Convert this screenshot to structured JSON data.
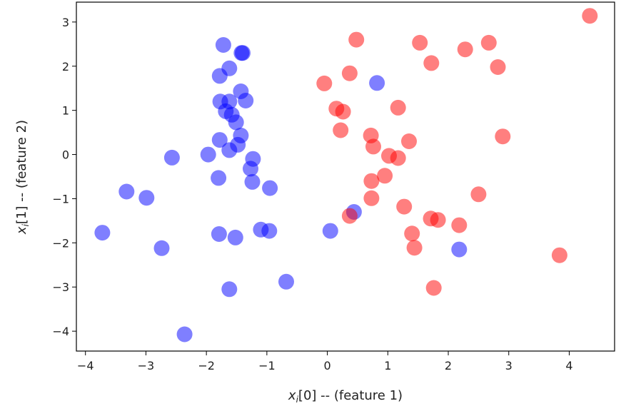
{
  "chart_data": {
    "type": "scatter",
    "xlabel": {
      "sym": "x",
      "sub": "i",
      "rest": "[0] -- (feature 1)"
    },
    "ylabel": {
      "sym": "x",
      "sub": "i",
      "rest": "[1] -- (feature 2)"
    },
    "xlim": [
      -4.15,
      4.75
    ],
    "ylim": [
      -4.45,
      3.45
    ],
    "xticks": [
      -4,
      -3,
      -2,
      -1,
      0,
      1,
      2,
      3,
      4
    ],
    "yticks": [
      3,
      2,
      1,
      0,
      -1,
      -2,
      -3,
      -4
    ],
    "xtick_labels": [
      "−4",
      "−3",
      "−2",
      "−1",
      "0",
      "1",
      "2",
      "3",
      "4"
    ],
    "ytick_labels": [
      "3",
      "2",
      "1",
      "0",
      "−1",
      "−2",
      "−3",
      "−4"
    ],
    "grid": false,
    "series": [
      {
        "color": "#0000ff",
        "alpha": 0.5,
        "points": [
          [
            -1.72,
            2.48
          ],
          [
            -1.42,
            2.3
          ],
          [
            -1.4,
            2.3
          ],
          [
            -1.62,
            1.95
          ],
          [
            -1.78,
            1.78
          ],
          [
            -1.43,
            1.43
          ],
          [
            -1.35,
            1.22
          ],
          [
            -1.77,
            1.2
          ],
          [
            -1.62,
            1.2
          ],
          [
            -1.68,
            0.98
          ],
          [
            -1.58,
            0.9
          ],
          [
            -1.51,
            0.73
          ],
          [
            -1.43,
            0.43
          ],
          [
            -1.78,
            0.33
          ],
          [
            -1.48,
            0.22
          ],
          [
            -1.62,
            0.1
          ],
          [
            -1.97,
            0.0
          ],
          [
            -2.57,
            -0.07
          ],
          [
            -1.23,
            -0.1
          ],
          [
            -1.27,
            -0.32
          ],
          [
            -1.8,
            -0.53
          ],
          [
            -1.24,
            -0.62
          ],
          [
            -0.95,
            -0.76
          ],
          [
            -3.32,
            -0.84
          ],
          [
            -2.99,
            -0.98
          ],
          [
            -3.72,
            -1.77
          ],
          [
            -1.79,
            -1.8
          ],
          [
            -1.52,
            -1.88
          ],
          [
            -1.1,
            -1.7
          ],
          [
            -0.96,
            -1.73
          ],
          [
            -2.74,
            -2.12
          ],
          [
            -0.68,
            -2.88
          ],
          [
            -1.62,
            -3.05
          ],
          [
            -2.36,
            -4.07
          ],
          [
            0.05,
            -1.73
          ],
          [
            0.44,
            -1.3
          ],
          [
            0.82,
            1.62
          ],
          [
            2.18,
            -2.15
          ]
        ]
      },
      {
        "color": "#ff0000",
        "alpha": 0.5,
        "points": [
          [
            4.34,
            3.14
          ],
          [
            0.48,
            2.6
          ],
          [
            1.53,
            2.53
          ],
          [
            2.67,
            2.53
          ],
          [
            2.28,
            2.38
          ],
          [
            1.72,
            2.07
          ],
          [
            2.82,
            1.98
          ],
          [
            0.37,
            1.84
          ],
          [
            -0.05,
            1.61
          ],
          [
            1.17,
            1.06
          ],
          [
            0.15,
            1.04
          ],
          [
            0.26,
            0.97
          ],
          [
            0.22,
            0.55
          ],
          [
            0.72,
            0.43
          ],
          [
            0.76,
            0.18
          ],
          [
            1.35,
            0.3
          ],
          [
            2.9,
            0.41
          ],
          [
            1.02,
            -0.03
          ],
          [
            1.17,
            -0.08
          ],
          [
            0.95,
            -0.48
          ],
          [
            0.73,
            -0.6
          ],
          [
            0.73,
            -0.99
          ],
          [
            2.5,
            -0.9
          ],
          [
            1.27,
            -1.18
          ],
          [
            1.71,
            -1.45
          ],
          [
            1.83,
            -1.48
          ],
          [
            1.4,
            -1.79
          ],
          [
            2.18,
            -1.6
          ],
          [
            1.44,
            -2.11
          ],
          [
            0.37,
            -1.39
          ],
          [
            1.76,
            -3.02
          ],
          [
            3.84,
            -2.28
          ]
        ]
      }
    ]
  }
}
